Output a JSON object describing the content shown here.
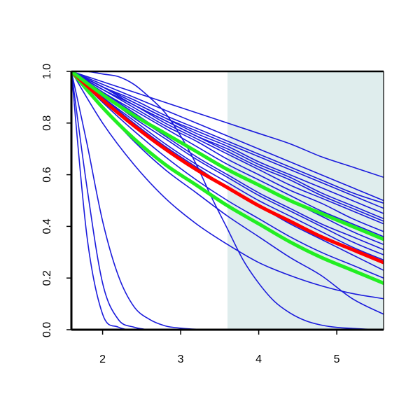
{
  "chart_data": {
    "type": "line",
    "title": "",
    "xlabel": "",
    "ylabel": "",
    "xlim": [
      1.6,
      5.6
    ],
    "ylim": [
      0.0,
      1.0
    ],
    "grid": false,
    "legend": "none",
    "x_ticks": [
      "2",
      "3",
      "4",
      "5"
    ],
    "y_ticks": [
      "0.0",
      "0.2",
      "0.4",
      "0.6",
      "0.8",
      "1.0"
    ],
    "shaded_region": {
      "x_start": 3.6,
      "x_end": 5.6,
      "color": "#dfeded"
    },
    "colors": {
      "series_blue": "#1a1adc",
      "highlight_red": "#ff0000",
      "highlight_green": "#22ee22",
      "axis": "#000000"
    },
    "series": [
      {
        "color": "#1a1adc",
        "width": 1.6,
        "x": [
          1.6,
          1.8,
          2.0,
          2.2,
          2.4,
          2.6,
          2.8,
          3.0
        ],
        "y": [
          1.0,
          0.36,
          0.06,
          0.01,
          0.0,
          0.0,
          0.0,
          0.0
        ]
      },
      {
        "color": "#1a1adc",
        "width": 1.6,
        "x": [
          1.6,
          1.8,
          2.0,
          2.2,
          2.4,
          2.6,
          2.8,
          3.0
        ],
        "y": [
          1.0,
          0.55,
          0.18,
          0.04,
          0.01,
          0.0,
          0.0,
          0.0
        ]
      },
      {
        "color": "#1a1adc",
        "width": 1.6,
        "x": [
          1.6,
          1.8,
          2.0,
          2.2,
          2.4,
          2.6,
          2.8,
          3.0,
          3.2,
          3.6,
          4.0
        ],
        "y": [
          1.0,
          0.72,
          0.42,
          0.21,
          0.09,
          0.04,
          0.015,
          0.006,
          0.002,
          0.0,
          0.0
        ]
      },
      {
        "color": "#1a1adc",
        "width": 1.6,
        "x": [
          1.6,
          1.8,
          2.0,
          2.2,
          2.4,
          2.6,
          2.8,
          3.0,
          3.2,
          3.4,
          3.6,
          3.8,
          4.0,
          4.2,
          4.4,
          4.6,
          4.8,
          5.0,
          5.2,
          5.4,
          5.6
        ],
        "y": [
          1.0,
          1.0,
          0.99,
          0.98,
          0.95,
          0.9,
          0.84,
          0.75,
          0.64,
          0.51,
          0.39,
          0.27,
          0.18,
          0.11,
          0.065,
          0.035,
          0.018,
          0.009,
          0.005,
          0.002,
          0.001
        ]
      },
      {
        "color": "#1a1adc",
        "width": 1.6,
        "x": [
          1.6,
          2.0,
          2.4,
          2.8,
          3.2,
          3.6,
          4.0,
          4.4,
          4.8,
          5.2,
          5.6
        ],
        "y": [
          1.0,
          0.8,
          0.64,
          0.51,
          0.41,
          0.33,
          0.26,
          0.21,
          0.17,
          0.14,
          0.12
        ]
      },
      {
        "color": "#1a1adc",
        "width": 1.6,
        "x": [
          1.6,
          2.0,
          2.4,
          2.8,
          3.2,
          3.6,
          4.0,
          4.4,
          4.8,
          5.2,
          5.6
        ],
        "y": [
          1.0,
          0.86,
          0.73,
          0.62,
          0.53,
          0.44,
          0.36,
          0.28,
          0.21,
          0.12,
          0.06
        ]
      },
      {
        "color": "#1a1adc",
        "width": 1.6,
        "x": [
          1.6,
          2.0,
          2.4,
          2.8,
          3.2,
          3.6,
          4.0,
          4.4,
          4.8,
          5.2,
          5.6
        ],
        "y": [
          1.0,
          0.88,
          0.77,
          0.67,
          0.58,
          0.5,
          0.43,
          0.36,
          0.3,
          0.25,
          0.2
        ]
      },
      {
        "color": "#1a1adc",
        "width": 1.6,
        "x": [
          1.6,
          2.0,
          2.4,
          2.8,
          3.2,
          3.6,
          4.0,
          4.4,
          4.8,
          5.2,
          5.6
        ],
        "y": [
          1.0,
          0.9,
          0.8,
          0.71,
          0.63,
          0.55,
          0.48,
          0.41,
          0.35,
          0.29,
          0.23
        ]
      },
      {
        "color": "#1a1adc",
        "width": 1.6,
        "x": [
          1.6,
          2.0,
          2.4,
          2.8,
          3.2,
          3.6,
          4.0,
          4.4,
          4.8,
          5.2,
          5.6
        ],
        "y": [
          1.0,
          0.9,
          0.81,
          0.72,
          0.64,
          0.57,
          0.5,
          0.44,
          0.38,
          0.32,
          0.27
        ]
      },
      {
        "color": "#1a1adc",
        "width": 1.6,
        "x": [
          1.6,
          2.0,
          2.4,
          2.8,
          3.2,
          3.6,
          4.0,
          4.4,
          4.8,
          5.2,
          5.6
        ],
        "y": [
          1.0,
          0.91,
          0.82,
          0.74,
          0.66,
          0.59,
          0.52,
          0.46,
          0.4,
          0.34,
          0.29
        ]
      },
      {
        "color": "#1a1adc",
        "width": 1.6,
        "x": [
          1.6,
          2.0,
          2.4,
          2.8,
          3.2,
          3.6,
          4.0,
          4.4,
          4.8,
          5.2,
          5.6
        ],
        "y": [
          1.0,
          0.91,
          0.83,
          0.75,
          0.67,
          0.6,
          0.53,
          0.47,
          0.41,
          0.36,
          0.31
        ]
      },
      {
        "color": "#1a1adc",
        "width": 1.6,
        "x": [
          1.6,
          2.0,
          2.4,
          2.8,
          3.2,
          3.6,
          4.0,
          4.4,
          4.8,
          5.2,
          5.6
        ],
        "y": [
          1.0,
          0.92,
          0.84,
          0.76,
          0.69,
          0.62,
          0.56,
          0.5,
          0.44,
          0.38,
          0.33
        ]
      },
      {
        "color": "#1a1adc",
        "width": 1.6,
        "x": [
          1.6,
          2.0,
          2.4,
          2.8,
          3.2,
          3.6,
          4.0,
          4.4,
          4.8,
          5.2,
          5.6
        ],
        "y": [
          1.0,
          0.92,
          0.85,
          0.78,
          0.71,
          0.64,
          0.58,
          0.52,
          0.46,
          0.41,
          0.36
        ]
      },
      {
        "color": "#1a1adc",
        "width": 1.6,
        "x": [
          1.6,
          2.0,
          2.4,
          2.8,
          3.2,
          3.6,
          4.0,
          4.4,
          4.8,
          5.2,
          5.6
        ],
        "y": [
          1.0,
          0.93,
          0.86,
          0.79,
          0.73,
          0.66,
          0.6,
          0.54,
          0.49,
          0.43,
          0.38
        ]
      },
      {
        "color": "#1a1adc",
        "width": 1.6,
        "x": [
          1.6,
          2.0,
          2.4,
          2.8,
          3.2,
          3.6,
          4.0,
          4.4,
          4.8,
          5.2,
          5.6
        ],
        "y": [
          1.0,
          0.93,
          0.87,
          0.8,
          0.74,
          0.68,
          0.62,
          0.56,
          0.51,
          0.46,
          0.41
        ]
      },
      {
        "color": "#1a1adc",
        "width": 1.6,
        "x": [
          1.6,
          2.0,
          2.4,
          2.8,
          3.2,
          3.6,
          4.0,
          4.4,
          4.8,
          5.2,
          5.6
        ],
        "y": [
          1.0,
          0.93,
          0.87,
          0.81,
          0.75,
          0.69,
          0.63,
          0.58,
          0.52,
          0.47,
          0.42
        ]
      },
      {
        "color": "#1a1adc",
        "width": 1.6,
        "x": [
          1.6,
          2.0,
          2.4,
          2.8,
          3.2,
          3.6,
          4.0,
          4.4,
          4.8,
          5.2,
          5.6
        ],
        "y": [
          1.0,
          0.94,
          0.87,
          0.81,
          0.75,
          0.7,
          0.64,
          0.59,
          0.53,
          0.48,
          0.43
        ]
      },
      {
        "color": "#1a1adc",
        "width": 1.6,
        "x": [
          1.6,
          2.0,
          2.4,
          2.8,
          3.2,
          3.6,
          4.0,
          4.4,
          4.8,
          5.2,
          5.6
        ],
        "y": [
          1.0,
          0.94,
          0.88,
          0.82,
          0.76,
          0.71,
          0.65,
          0.6,
          0.55,
          0.5,
          0.45
        ]
      },
      {
        "color": "#1a1adc",
        "width": 1.6,
        "x": [
          1.6,
          2.0,
          2.4,
          2.8,
          3.2,
          3.6,
          4.0,
          4.4,
          4.8,
          5.2,
          5.6
        ],
        "y": [
          1.0,
          0.94,
          0.89,
          0.83,
          0.78,
          0.73,
          0.68,
          0.63,
          0.58,
          0.53,
          0.49
        ]
      },
      {
        "color": "#1a1adc",
        "width": 1.6,
        "x": [
          1.6,
          2.0,
          2.4,
          2.8,
          3.2,
          3.6,
          4.0,
          4.4,
          4.8,
          5.2,
          5.6
        ],
        "y": [
          1.0,
          0.96,
          0.92,
          0.88,
          0.84,
          0.8,
          0.76,
          0.72,
          0.67,
          0.63,
          0.59
        ]
      },
      {
        "color": "#1a1adc",
        "width": 1.6,
        "x": [
          1.6,
          2.0,
          2.4,
          2.8,
          3.2,
          3.6,
          4.0,
          4.4,
          4.8,
          5.2,
          5.6
        ],
        "y": [
          1.0,
          0.95,
          0.9,
          0.85,
          0.8,
          0.75,
          0.7,
          0.65,
          0.6,
          0.55,
          0.5
        ]
      },
      {
        "color": "#1a1adc",
        "width": 1.6,
        "x": [
          1.6,
          2.0,
          2.4,
          2.8,
          3.2,
          3.6,
          4.0,
          4.4,
          4.8,
          5.2,
          5.6
        ],
        "y": [
          1.0,
          0.94,
          0.88,
          0.82,
          0.77,
          0.72,
          0.67,
          0.62,
          0.57,
          0.52,
          0.47
        ]
      },
      {
        "color": "#22ee22",
        "width": 5,
        "x": [
          1.6,
          2.0,
          2.4,
          2.8,
          3.2,
          3.6,
          4.0,
          4.4,
          4.8,
          5.2,
          5.6
        ],
        "y": [
          1.0,
          0.86,
          0.74,
          0.64,
          0.56,
          0.48,
          0.41,
          0.34,
          0.28,
          0.23,
          0.18
        ]
      },
      {
        "color": "#ff0000",
        "width": 5,
        "x": [
          1.6,
          2.0,
          2.4,
          2.8,
          3.2,
          3.6,
          4.0,
          4.4,
          4.8,
          5.2,
          5.6
        ],
        "y": [
          1.0,
          0.89,
          0.79,
          0.7,
          0.62,
          0.55,
          0.48,
          0.42,
          0.36,
          0.31,
          0.26
        ]
      },
      {
        "color": "#22ee22",
        "width": 5,
        "x": [
          1.6,
          2.0,
          2.4,
          2.8,
          3.2,
          3.6,
          4.0,
          4.4,
          4.8,
          5.2,
          5.6
        ],
        "y": [
          1.0,
          0.91,
          0.83,
          0.76,
          0.69,
          0.62,
          0.56,
          0.5,
          0.45,
          0.4,
          0.35
        ]
      }
    ]
  }
}
